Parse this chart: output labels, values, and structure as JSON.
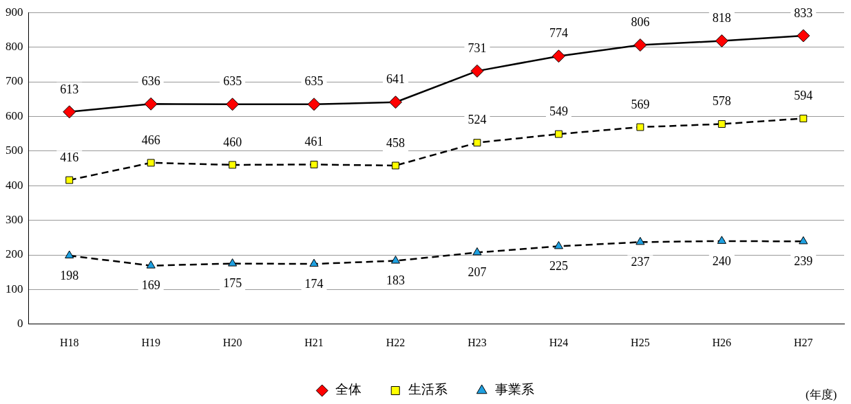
{
  "chart_data": {
    "type": "line",
    "xlabel": "(年度)",
    "categories": [
      "H18",
      "H19",
      "H20",
      "H21",
      "H22",
      "H23",
      "H24",
      "H25",
      "H26",
      "H27"
    ],
    "ylim": [
      0,
      900
    ],
    "yticks": [
      0,
      100,
      200,
      300,
      400,
      500,
      600,
      700,
      800,
      900
    ],
    "grid": "y",
    "legend": "bottom",
    "data_labels": true,
    "series": [
      {
        "name": "全体",
        "color": "#ff0000",
        "marker": "diamond",
        "line_style": "solid",
        "values": [
          613,
          636,
          635,
          635,
          641,
          731,
          774,
          806,
          818,
          833
        ]
      },
      {
        "name": "生活系",
        "color": "#ffff00",
        "marker": "square",
        "line_style": "dashed",
        "values": [
          416,
          466,
          460,
          461,
          458,
          524,
          549,
          569,
          578,
          594
        ]
      },
      {
        "name": "事業系",
        "color": "#1fa0e0",
        "marker": "triangle",
        "line_style": "dashed",
        "values": [
          198,
          169,
          175,
          174,
          183,
          207,
          225,
          237,
          240,
          239
        ]
      }
    ]
  }
}
